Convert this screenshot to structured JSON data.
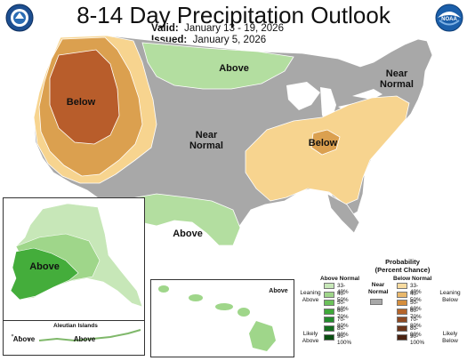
{
  "header": {
    "title": "8-14 Day Precipitation Outlook",
    "valid_label": "Valid:",
    "valid_value": "January 13 - 19, 2026",
    "issued_label": "Issued:",
    "issued_value": "January 5, 2026",
    "left_logo_icon": "noaa-nws-seal-icon",
    "right_logo_icon": "noaa-logo-icon",
    "right_logo_text": "NOAA"
  },
  "map": {
    "labels": {
      "below_west": "Below",
      "above_north": "Above",
      "near_normal_central_1": "Near",
      "near_normal_central_2": "Normal",
      "near_normal_ne_1": "Near",
      "near_normal_ne_2": "Normal",
      "below_east": "Below",
      "above_texas": "Above",
      "above_alaska": "Above",
      "above_hawaii": "Above",
      "aleutian_title": "Aleutian Islands",
      "above_aleutian_1": "Above",
      "above_aleutian_2": "Above"
    },
    "colors": {
      "near_normal": "#a8a8a8",
      "below_33_40": "#f7d48f",
      "below_40_50": "#dba04f",
      "below_50_60": "#b85d2b",
      "above_33_40": "#b3dea0",
      "above_40_50": "#82c96c",
      "above_50_60": "#44ad3b",
      "water": "#ffffff",
      "border": "#ffffff"
    }
  },
  "legend": {
    "title_1": "Probability",
    "title_2": "(Percent Chance)",
    "above_header": "Above Normal",
    "below_header": "Below Normal",
    "near_header_1": "Near",
    "near_header_2": "Normal",
    "leaning_above_1": "Leaning",
    "leaning_above_2": "Above",
    "likely_above_1": "Likely",
    "likely_above_2": "Above",
    "leaning_below_1": "Leaning",
    "leaning_below_2": "Below",
    "likely_below_1": "Likely",
    "likely_below_2": "Below",
    "ranges": [
      "33-40%",
      "40-50%",
      "50-60%",
      "60-70%",
      "70-80%",
      "80-90%",
      "90-100%"
    ],
    "above_colors": [
      "#c7e7b8",
      "#9fd68a",
      "#6cc15b",
      "#3fa83a",
      "#238b2d",
      "#146e1f",
      "#0a4f12"
    ],
    "below_colors": [
      "#f7dba0",
      "#e9b86c",
      "#d58e3e",
      "#b5652b",
      "#8e4a23",
      "#6b351a",
      "#4a2312"
    ],
    "near_color": "#a8a8a8"
  }
}
